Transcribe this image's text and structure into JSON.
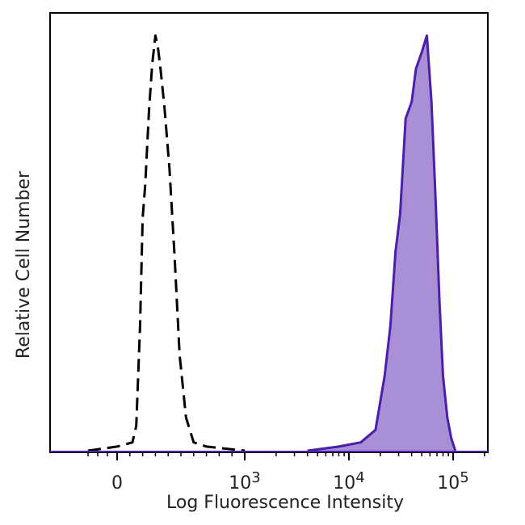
{
  "chart_data": {
    "type": "area",
    "title": "",
    "xlabel": "Log Fluorescence Intensity",
    "ylabel": "Relative Cell Number",
    "x_scale": "biexponential",
    "x_ticks": [
      {
        "value": 0,
        "label": "0",
        "exp": ""
      },
      {
        "value": 1000,
        "label": "10",
        "exp": "3"
      },
      {
        "value": 10000,
        "label": "10",
        "exp": "4"
      },
      {
        "value": 100000,
        "label": "10",
        "exp": "5"
      }
    ],
    "y_ticks": [],
    "grid": false,
    "legend": "none",
    "series": [
      {
        "style": "dashed",
        "color": "#000000",
        "fill": "none",
        "points": [
          [
            -300,
            0.0
          ],
          [
            0,
            0.01
          ],
          [
            120,
            0.02
          ],
          [
            150,
            0.06
          ],
          [
            180,
            0.3
          ],
          [
            200,
            0.56
          ],
          [
            220,
            0.64
          ],
          [
            250,
            0.82
          ],
          [
            275,
            0.93
          ],
          [
            300,
            1.0
          ],
          [
            320,
            0.97
          ],
          [
            340,
            0.92
          ],
          [
            370,
            0.83
          ],
          [
            410,
            0.68
          ],
          [
            450,
            0.47
          ],
          [
            490,
            0.23
          ],
          [
            540,
            0.08
          ],
          [
            600,
            0.02
          ],
          [
            700,
            0.01
          ],
          [
            1000,
            0.0
          ]
        ]
      },
      {
        "style": "solid",
        "color": "#4B1FA8",
        "fill": "#A98FD6",
        "points": [
          [
            4000,
            0.0
          ],
          [
            8000,
            0.01
          ],
          [
            13000,
            0.02
          ],
          [
            18000,
            0.05
          ],
          [
            22000,
            0.18
          ],
          [
            25000,
            0.3
          ],
          [
            28000,
            0.48
          ],
          [
            31000,
            0.57
          ],
          [
            35000,
            0.8
          ],
          [
            40000,
            0.84
          ],
          [
            44000,
            0.92
          ],
          [
            50000,
            0.96
          ],
          [
            56000,
            1.0
          ],
          [
            62000,
            0.84
          ],
          [
            68000,
            0.6
          ],
          [
            74000,
            0.36
          ],
          [
            80000,
            0.18
          ],
          [
            88000,
            0.08
          ],
          [
            96000,
            0.03
          ],
          [
            105000,
            0.0
          ]
        ]
      }
    ],
    "colors": {
      "frame": "#000000",
      "isotype": "#000000",
      "stained_line": "#4B1FA8",
      "stained_fill": "#A98FD6"
    }
  }
}
